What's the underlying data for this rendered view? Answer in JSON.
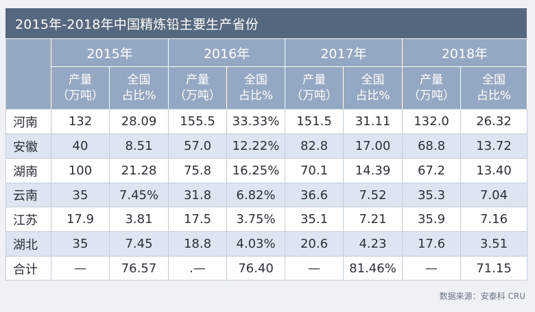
{
  "title": "2015年-2018年中国精炼铅主要生产省份",
  "years": [
    "2015年",
    "2016年",
    "2017年",
    "2018年"
  ],
  "sub_headers": {
    "production_line1": "产量",
    "production_line2": "（万吨）",
    "share_line1": "全国",
    "share_line2": "占比%"
  },
  "rows": [
    {
      "province": "河南",
      "values": [
        "132",
        "28.09",
        "155.5",
        "33.33%",
        "151.5",
        "31.11",
        "132.0",
        "26.32"
      ]
    },
    {
      "province": "安徽",
      "values": [
        "40",
        "8.51",
        "57.0",
        "12.22%",
        "82.8",
        "17.00",
        "68.8",
        "13.72"
      ]
    },
    {
      "province": "湖南",
      "values": [
        "100",
        "21.28",
        "75.8",
        "16.25%",
        "70.1",
        "14.39",
        "67.2",
        "13.40"
      ]
    },
    {
      "province": "云南",
      "values": [
        "35",
        "7.45%",
        "31.8",
        "6.82%",
        "36.6",
        "7.52",
        "35.3",
        "7.04"
      ]
    },
    {
      "province": "江苏",
      "values": [
        "17.9",
        "3.81",
        "17.5",
        "3.75%",
        "35.1",
        "7.21",
        "35.9",
        "7.16"
      ]
    },
    {
      "province": "湖北",
      "values": [
        "35",
        "7.45",
        "18.8",
        "4.03%",
        "20.6",
        "4.23",
        "17.6",
        "3.51"
      ]
    },
    {
      "province": "合计",
      "values": [
        "—",
        "76.57",
        ".—",
        "76.40",
        "—",
        "81.46%",
        "—",
        "71.15"
      ]
    }
  ],
  "source": "数据来源：安泰科 CRU"
}
